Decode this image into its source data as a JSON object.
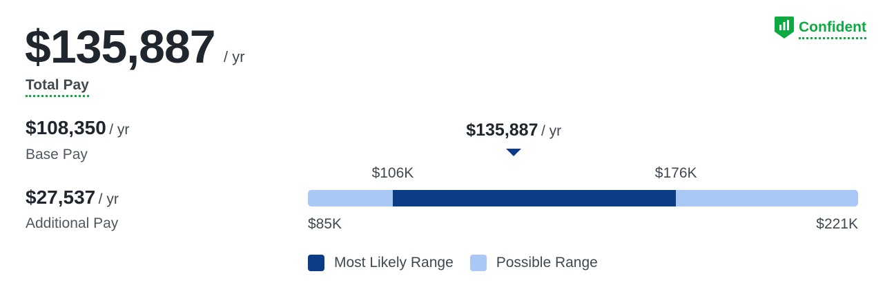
{
  "total": {
    "amount": "$135,887",
    "per": "/ yr",
    "label": "Total Pay"
  },
  "confidence": {
    "label": "Confident",
    "icon": "bar-chart-shield-icon",
    "color": "#0caa41"
  },
  "base": {
    "amount": "$108,350",
    "per": "/ yr",
    "label": "Base Pay"
  },
  "additional": {
    "amount": "$27,537",
    "per": "/ yr",
    "label": "Additional Pay"
  },
  "range": {
    "marker_value": "$135,887",
    "marker_per": "/ yr",
    "min_label": "$85K",
    "max_label": "$221K",
    "likely_low_label": "$106K",
    "likely_high_label": "$176K",
    "min": 85000,
    "max": 221000,
    "likely_low": 106000,
    "likely_high": 176000,
    "marker": 135887,
    "likely_color": "#0c3c85",
    "possible_color": "#a9c8f5"
  },
  "legend": {
    "likely": "Most Likely Range",
    "possible": "Possible Range"
  }
}
